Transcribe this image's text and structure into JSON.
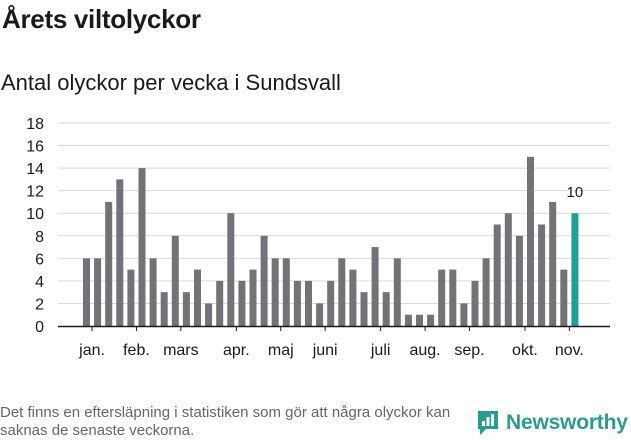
{
  "title": "Årets viltolyckor",
  "subtitle": "Antal olyckor per vecka i Sundsvall",
  "footnote": "Det finns en eftersläpning i statistiken som gör att några olyckor kan saknas de senaste veckorna.",
  "brand": {
    "name": "Newsworthy",
    "icon": "newsworthy-logo-icon",
    "color": "#2a9d8f"
  },
  "colors": {
    "bar": "#737276",
    "highlight": "#17a398",
    "grid": "#d9d9d9",
    "axis": "#1a1a1a"
  },
  "chart_data": {
    "type": "bar",
    "title": "Antal olyckor per vecka i Sundsvall",
    "xlabel": "",
    "ylabel": "",
    "ylim": [
      0,
      18
    ],
    "yticks": [
      0,
      2,
      4,
      6,
      8,
      10,
      12,
      14,
      16,
      18
    ],
    "grid": true,
    "month_labels": [
      {
        "label": "jan.",
        "week_index": 0.5
      },
      {
        "label": "feb.",
        "week_index": 4.5
      },
      {
        "label": "mars",
        "week_index": 8.5
      },
      {
        "label": "apr.",
        "week_index": 13.5
      },
      {
        "label": "maj",
        "week_index": 17.5
      },
      {
        "label": "juni",
        "week_index": 21.5
      },
      {
        "label": "juli",
        "week_index": 26.5
      },
      {
        "label": "aug.",
        "week_index": 30.5
      },
      {
        "label": "sep.",
        "week_index": 34.5
      },
      {
        "label": "okt.",
        "week_index": 39.5
      },
      {
        "label": "nov.",
        "week_index": 43.5
      }
    ],
    "values": [
      6,
      6,
      11,
      13,
      5,
      14,
      6,
      3,
      8,
      3,
      5,
      2,
      4,
      10,
      4,
      5,
      8,
      6,
      6,
      4,
      4,
      2,
      4,
      6,
      5,
      3,
      7,
      3,
      6,
      1,
      1,
      1,
      5,
      5,
      2,
      4,
      6,
      9,
      10,
      8,
      15,
      9,
      11,
      5,
      10
    ],
    "highlight_index": 44,
    "highlight_label": "10"
  }
}
